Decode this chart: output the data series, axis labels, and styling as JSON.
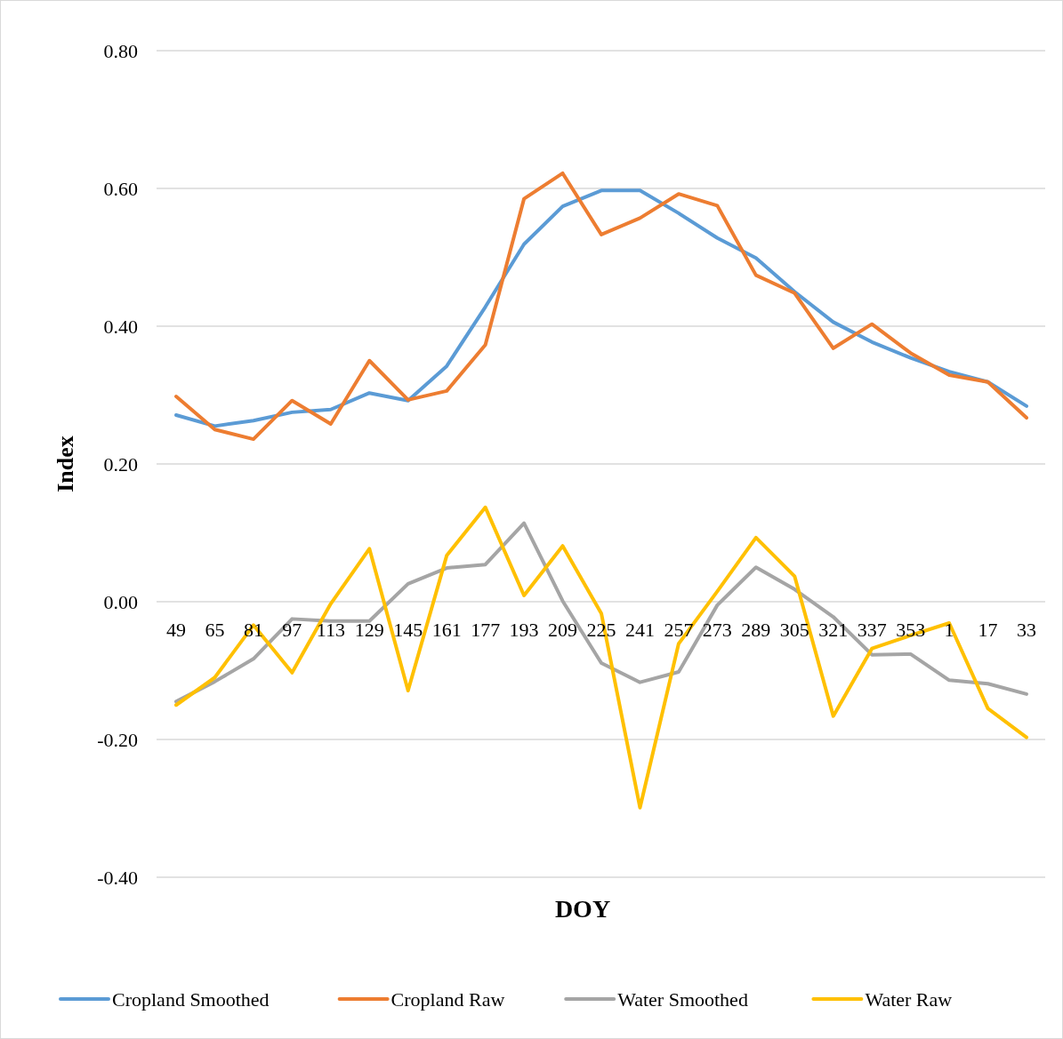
{
  "chart_data": {
    "type": "line",
    "xlabel": "DOY",
    "ylabel": "Index",
    "categories": [
      "49",
      "65",
      "81",
      "97",
      "113",
      "129",
      "145",
      "161",
      "177",
      "193",
      "209",
      "225",
      "241",
      "257",
      "273",
      "289",
      "305",
      "321",
      "337",
      "353",
      "1",
      "17",
      "33"
    ],
    "series": [
      {
        "name": "Cropland Smoothed",
        "color": "#5b9bd5",
        "values": [
          0.271,
          0.255,
          0.263,
          0.275,
          0.279,
          0.303,
          0.292,
          0.342,
          0.428,
          0.519,
          0.574,
          0.597,
          0.597,
          0.564,
          0.528,
          0.499,
          0.45,
          0.406,
          0.377,
          0.354,
          0.334,
          0.319,
          0.284
        ]
      },
      {
        "name": "Cropland Raw",
        "color": "#ed7d31",
        "values": [
          0.298,
          0.25,
          0.236,
          0.292,
          0.258,
          0.35,
          0.293,
          0.306,
          0.373,
          0.585,
          0.622,
          0.533,
          0.557,
          0.592,
          0.575,
          0.474,
          0.448,
          0.368,
          0.403,
          0.361,
          0.329,
          0.319,
          0.267
        ]
      },
      {
        "name": "Water Smoothed",
        "color": "#a5a5a5",
        "values": [
          -0.145,
          -0.116,
          -0.083,
          -0.025,
          -0.028,
          -0.028,
          0.026,
          0.049,
          0.054,
          0.114,
          0.001,
          -0.089,
          -0.117,
          -0.102,
          -0.005,
          0.05,
          0.018,
          -0.022,
          -0.077,
          -0.076,
          -0.114,
          -0.119,
          -0.134
        ]
      },
      {
        "name": "Water Raw",
        "color": "#ffc000",
        "values": [
          -0.15,
          -0.11,
          -0.034,
          -0.103,
          -0.003,
          0.077,
          -0.129,
          0.067,
          0.137,
          0.009,
          0.081,
          -0.017,
          -0.299,
          -0.061,
          0.015,
          0.093,
          0.037,
          -0.166,
          -0.068,
          -0.049,
          -0.031,
          -0.155,
          -0.197
        ]
      }
    ],
    "ylim": [
      -0.4,
      0.8
    ],
    "yticks": [
      {
        "value": -0.4,
        "label": "-0.40"
      },
      {
        "value": -0.2,
        "label": "-0.20"
      },
      {
        "value": 0,
        "label": "0.00"
      },
      {
        "value": 0.2,
        "label": "0.20"
      },
      {
        "value": 0.4,
        "label": "0.40"
      },
      {
        "value": 0.6,
        "label": "0.60"
      },
      {
        "value": 0.8,
        "label": "0.80"
      }
    ],
    "grid": "y",
    "legend": "bottom",
    "line_style": "solid"
  }
}
